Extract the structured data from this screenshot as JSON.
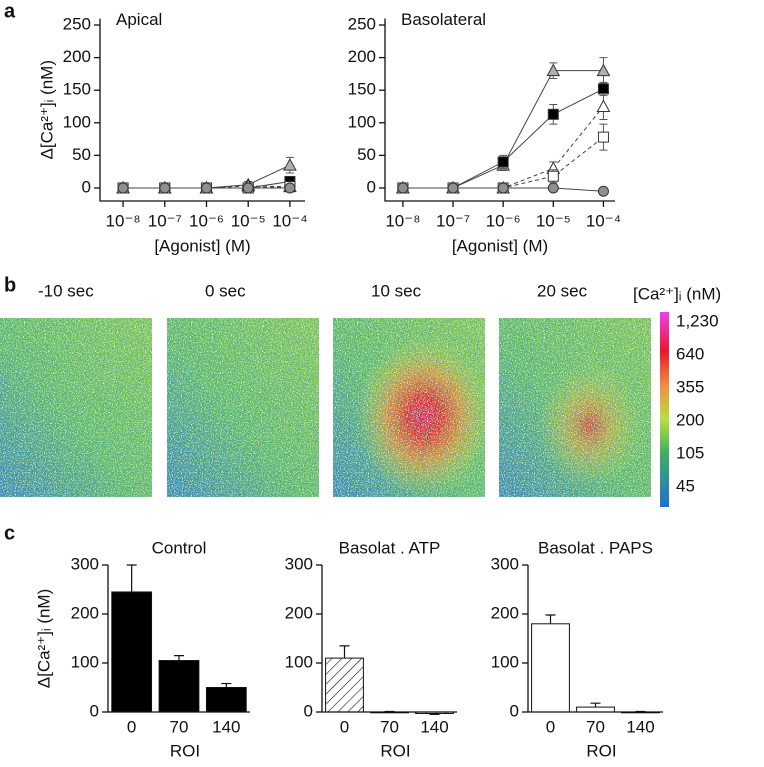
{
  "panel_labels": [
    "a",
    "b",
    "c"
  ],
  "chart_data": [
    {
      "type": "line",
      "title": "Apical",
      "xlabel": "[Agonist] (M)",
      "ylabel": "Δ[Ca²⁺]ᵢ (nM)",
      "log_x": true,
      "x": [
        1e-08,
        1e-07,
        1e-06,
        1e-05,
        0.0001
      ],
      "xlim": [
        2.8e-09,
        0.00023
      ],
      "xticks": [
        {
          "value": 1e-08,
          "label": "10⁻⁸"
        },
        {
          "value": 1e-07,
          "label": "10⁻⁷"
        },
        {
          "value": 1e-06,
          "label": "10⁻⁶"
        },
        {
          "value": 1e-05,
          "label": "10⁻⁵"
        },
        {
          "value": 0.0001,
          "label": "10⁻⁴"
        }
      ],
      "ylim": [
        -20,
        260
      ],
      "yticks": [
        0,
        50,
        100,
        150,
        200,
        250
      ],
      "series": [
        {
          "marker": "triangle",
          "color": "#b0b0b0",
          "line_style": "solid",
          "values": [
            0,
            0,
            0,
            5,
            35
          ],
          "errors": [
            3,
            2,
            2,
            5,
            12
          ]
        },
        {
          "marker": "square",
          "color": "#000000",
          "line_style": "solid",
          "values": [
            0,
            0,
            0,
            0,
            10
          ],
          "errors": [
            2,
            2,
            2,
            3,
            4
          ]
        },
        {
          "marker": "triangle",
          "color": "#ffffff",
          "line_style": "dashed",
          "values": [
            0,
            0,
            0,
            3,
            2
          ],
          "errors": [
            2,
            2,
            2,
            3,
            3
          ]
        },
        {
          "marker": "square",
          "color": "#ffffff",
          "line_style": "dashed",
          "values": [
            0,
            0,
            0,
            0,
            2
          ],
          "errors": [
            2,
            2,
            2,
            2,
            3
          ]
        },
        {
          "marker": "circle",
          "color": "#909090",
          "line_style": "solid",
          "values": [
            0,
            0,
            0,
            0,
            0
          ],
          "errors": [
            2,
            2,
            2,
            2,
            2
          ]
        }
      ]
    },
    {
      "type": "line",
      "title": "Basolateral",
      "xlabel": "[Agonist] (M)",
      "log_x": true,
      "x": [
        1e-08,
        1e-07,
        1e-06,
        1e-05,
        0.0001
      ],
      "xlim": [
        4.4e-09,
        0.00017
      ],
      "xticks": [
        {
          "value": 1e-08,
          "label": "10⁻⁸"
        },
        {
          "value": 1e-07,
          "label": "10⁻⁷"
        },
        {
          "value": 1e-06,
          "label": "10⁻⁶"
        },
        {
          "value": 1e-05,
          "label": "10⁻⁵"
        },
        {
          "value": 0.0001,
          "label": "10⁻⁴"
        }
      ],
      "ylim": [
        -20,
        260
      ],
      "yticks": [
        0,
        50,
        100,
        150,
        200,
        250
      ],
      "series": [
        {
          "marker": "triangle",
          "color": "#b0b0b0",
          "line_style": "solid",
          "values": [
            0,
            0,
            35,
            180,
            180
          ],
          "errors": [
            3,
            3,
            8,
            12,
            20
          ]
        },
        {
          "marker": "square",
          "color": "#000000",
          "line_style": "solid",
          "values": [
            0,
            0,
            40,
            113,
            152
          ],
          "errors": [
            2,
            2,
            10,
            15,
            10
          ]
        },
        {
          "marker": "triangle",
          "color": "#ffffff",
          "line_style": "dashed",
          "values": [
            0,
            0,
            0,
            30,
            125
          ],
          "errors": [
            2,
            2,
            3,
            10,
            20
          ]
        },
        {
          "marker": "square",
          "color": "#ffffff",
          "line_style": "dashed",
          "values": [
            0,
            0,
            0,
            18,
            78
          ],
          "errors": [
            2,
            2,
            3,
            10,
            20
          ]
        },
        {
          "marker": "circle",
          "color": "#909090",
          "line_style": "solid",
          "values": [
            0,
            0,
            0,
            0,
            -5
          ],
          "errors": [
            2,
            2,
            2,
            3,
            3
          ]
        }
      ]
    },
    {
      "type": "bar",
      "title": "Control",
      "xlabel": "ROI",
      "ylabel": "Δ[Ca²⁺]ᵢ (nM)",
      "categories": [
        "0",
        "70",
        "140"
      ],
      "values": [
        245,
        105,
        50
      ],
      "errors": [
        55,
        10,
        8
      ],
      "color": "#000000",
      "hatch": false,
      "ylim": [
        0,
        300
      ],
      "yticks": [
        0,
        100,
        200,
        300
      ]
    },
    {
      "type": "bar",
      "title": "Basolat . ATP",
      "xlabel": "ROI",
      "categories": [
        "0",
        "70",
        "140"
      ],
      "values": [
        110,
        0,
        -3
      ],
      "errors": [
        25,
        1,
        2
      ],
      "color": "#ffffff",
      "hatch": true,
      "ylim": [
        0,
        300
      ],
      "yticks": [
        0,
        100,
        200,
        300
      ]
    },
    {
      "type": "bar",
      "title": "Basolat . PAPS",
      "xlabel": "ROI",
      "categories": [
        "0",
        "70",
        "140"
      ],
      "values": [
        180,
        10,
        0
      ],
      "errors": [
        18,
        8,
        1
      ],
      "color": "#ffffff",
      "hatch": false,
      "ylim": [
        0,
        300
      ],
      "yticks": [
        0,
        100,
        200,
        300
      ]
    }
  ],
  "images": {
    "frames": [
      "-10 sec",
      "0  sec",
      "10 sec",
      "20 sec"
    ],
    "colorbar": {
      "title": "[Ca²⁺]ᵢ (nM)",
      "labels": [
        "1,230",
        "640",
        "355",
        "200",
        "105",
        "45"
      ]
    }
  }
}
